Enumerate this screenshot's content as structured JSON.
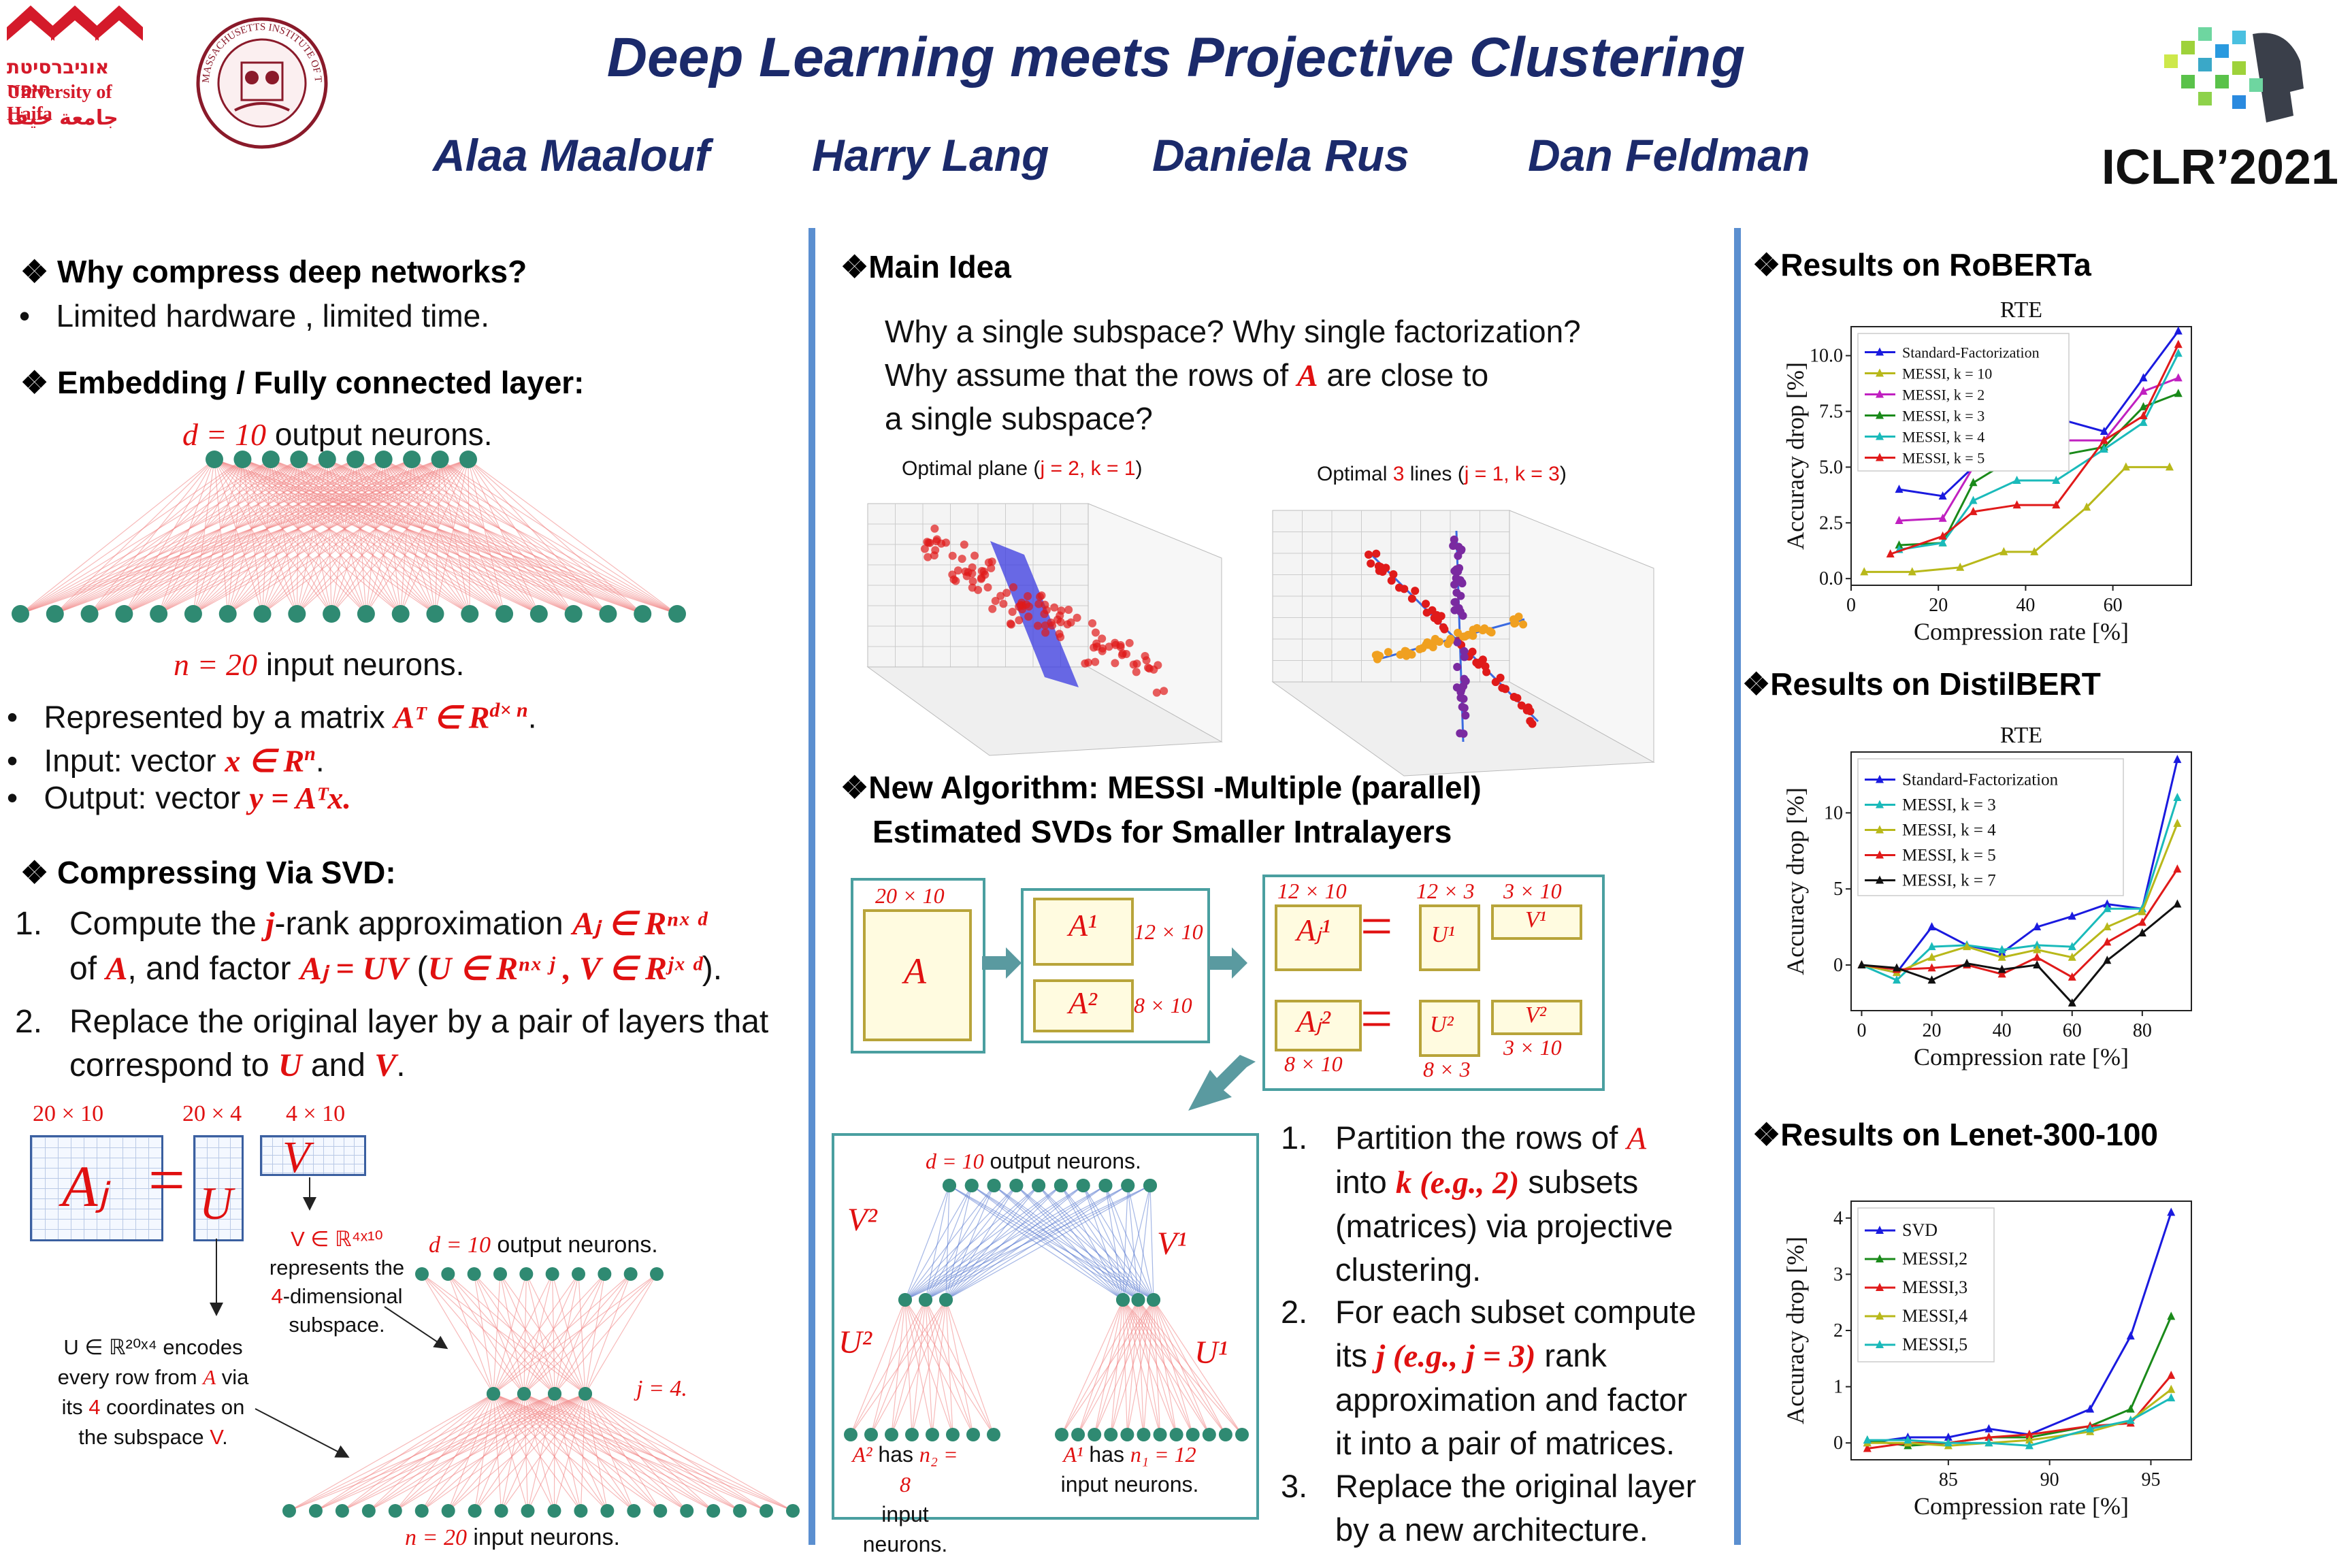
{
  "header": {
    "title": "Deep Learning meets Projective Clustering",
    "authors": [
      "Alaa Maalouf",
      "Harry Lang",
      "Daniela Rus",
      "Dan Feldman"
    ],
    "conference": "ICLR’2021",
    "haifa_logo_lines": [
      "אוניברסיטת חיפה",
      "University of Haifa",
      "جامعة حيفا"
    ],
    "mit_seal_text": "MASSACHUSETTS INSTITUTE OF TECHNOLOGY"
  },
  "left": {
    "why_heading": "❖ Why compress deep networks?",
    "why_bullet": "Limited hardware , limited time.",
    "emb_heading": "❖ Embedding / Fully connected layer:",
    "d_label": "d = 10",
    "d_suffix": " output neurons.",
    "n_label": "n = 20",
    "n_suffix": " input neurons.",
    "bullet1_pre": "Represented by a matrix ",
    "bullet1_math": "Aᵀ ∈ R",
    "bullet1_sup": "d× n",
    "bullet2_pre": "Input: vector ",
    "bullet2_math": "x ∈ R",
    "bullet2_sup": "n",
    "bullet3_pre": "Output: vector ",
    "bullet3_math": "y = Aᵀx.",
    "svd_heading": "❖ Compressing Via SVD:",
    "svd_step1_a": "Compute the ",
    "svd_step1_j": "j",
    "svd_step1_b": "-rank approximation ",
    "svd_step1_m1": "Aⱼ ∈ Rⁿˣ ᵈ",
    "svd_step1_c": "of ",
    "svd_step1_A": "A",
    "svd_step1_d": ", and factor ",
    "svd_step1_m2": "Aⱼ = UV",
    "svd_step1_e": " (",
    "svd_step1_m3": "U ∈ Rⁿˣ ʲ , V ∈ Rʲˣ ᵈ",
    "svd_step1_f": ").",
    "svd_step2_a": "Replace the original layer by a pair of layers that correspond to ",
    "svd_step2_U": "U",
    "svd_step2_and": " and ",
    "svd_step2_V": "V",
    "svd_step2_end": ".",
    "mat_Aj_dim": "20 × 10",
    "mat_U_dim": "20 × 4",
    "mat_V_dim": "4 × 10",
    "mat_Aj": "Aⱼ",
    "mat_eq": "=",
    "mat_U": "U",
    "mat_V": "V",
    "v_note_1": "V ∈ ℝ⁴ˣ¹⁰",
    "v_note_2": "represents the",
    "v_note_3a": "4",
    "v_note_3b": "-dimensional",
    "v_note_4": "subspace.",
    "u_note_1": "U ∈ ℝ²⁰ˣ⁴ encodes",
    "u_note_2a": "every row from ",
    "u_note_2b": "A",
    "u_note_2c": " via",
    "u_note_3a": "its ",
    "u_note_3b": "4",
    "u_note_3c": " coordinates on",
    "u_note_4a": "the subspace ",
    "u_note_4b": "V",
    "u_note_4c": ".",
    "net_d": "d = 10",
    "net_d_suffix": " output neurons.",
    "net_j": "j = 4.",
    "net_n": "n = 20",
    "net_n_suffix": " input neurons."
  },
  "middle": {
    "main_heading": "❖Main Idea",
    "main_q1": "Why a single subspace? Why single factorization?",
    "main_q2a": "Why assume that the rows of ",
    "main_q2b": "A",
    "main_q2c": " are close to",
    "main_q3": "a single subspace?",
    "plot1_title_a": "Optimal plane (",
    "plot1_title_b": "j = 2, k = 1",
    "plot1_title_c": ")",
    "plot2_title_a": "Optimal ",
    "plot2_title_b": "3",
    "plot2_title_c": " lines (",
    "plot2_title_d": "j = 1, k = 3",
    "plot2_title_e": ")",
    "alg_heading_1": "❖New Algorithm: MESSI -Multiple (parallel)",
    "alg_heading_2": "Estimated SVDs for Smaller Intralayers",
    "A_dim": "20 × 10",
    "A": "A",
    "A1": "A¹",
    "A1_dim": "12 × 10",
    "A2": "A²",
    "A2_dim": "8 × 10",
    "Aj1_dim": "12 × 10",
    "Aj1": "Aⱼ¹",
    "U1_dim": "12 × 3",
    "U1": "U¹",
    "V1_dim": "3 × 10",
    "V1": "V¹",
    "Aj2": "Aⱼ²",
    "Aj2_dim": "8 × 10",
    "U2": "U²",
    "U2_dim": "8 × 3",
    "V2": "V²",
    "V2_dim": "3 × 10",
    "eq": "=",
    "net_d": "d = 10",
    "net_d_suffix": " output neurons.",
    "net_V2": "V²",
    "net_V1": "V¹",
    "net_U2": "U²",
    "net_U1": "U¹",
    "net_A2_a": "A²",
    "net_A2_b": " has ",
    "net_A2_c": "n₂ = 8",
    "net_A1_a": "A¹",
    "net_A1_b": " has ",
    "net_A1_c": "n₁ = 12",
    "net_input": "input neurons.",
    "step1_a": "Partition the rows of ",
    "step1_A": "A",
    "step1_b": "into ",
    "step1_k": "k (e.g., 2)",
    "step1_c": " subsets",
    "step1_d": "(matrices) via projective",
    "step1_e": "clustering.",
    "step2_a": "For each subset compute",
    "step2_b": "its ",
    "step2_j": "j (e.g., j = 3)",
    "step2_c": " rank",
    "step2_d": "approximation and factor",
    "step2_e": "it into a pair of matrices.",
    "step3_a": "Replace the original layer",
    "step3_b": "by a new architecture."
  },
  "right": {
    "roberta_heading": "❖Results on RoBERTa",
    "distil_heading": "❖Results on DistilBERT",
    "lenet_heading": "❖Results on Lenet-300-100"
  },
  "chart_data": [
    {
      "type": "line",
      "title": "RTE",
      "xlabel": "Compression rate [%]",
      "ylabel": "Accuracy drop [%]",
      "xlim": [
        0,
        78
      ],
      "ylim": [
        -0.3,
        11.3
      ],
      "xticks": [
        0,
        20,
        40,
        60
      ],
      "yticks": [
        0.0,
        2.5,
        5.0,
        7.5,
        10.0
      ],
      "ytick_labels": [
        "0.0",
        "2.5",
        "5.0",
        "7.5",
        "10.0"
      ],
      "legend": "top-left",
      "series": [
        {
          "name": "Standard-Factorization",
          "color": "#1a1adf",
          "x": [
            11,
            21,
            28,
            38,
            47,
            58,
            67,
            75
          ],
          "y": [
            4.0,
            3.7,
            5.0,
            5.8,
            7.2,
            6.6,
            9.0,
            11.1
          ]
        },
        {
          "name": "MESSI, k = 10",
          "color": "#b8b81a",
          "x": [
            3,
            14,
            25,
            35,
            42,
            54,
            63,
            73
          ],
          "y": [
            0.3,
            0.3,
            0.5,
            1.2,
            1.2,
            3.2,
            5.0,
            5.0
          ]
        },
        {
          "name": "MESSI, k = 2",
          "color": "#c020c0",
          "x": [
            11,
            21,
            28,
            38,
            47,
            58,
            67,
            75
          ],
          "y": [
            2.6,
            2.7,
            5.0,
            6.0,
            6.2,
            6.2,
            8.4,
            9.0
          ]
        },
        {
          "name": "MESSI, k = 3",
          "color": "#1a8a1a",
          "x": [
            11,
            21,
            28,
            38,
            47,
            58,
            67,
            75
          ],
          "y": [
            1.5,
            1.6,
            4.3,
            5.5,
            5.5,
            5.9,
            7.7,
            8.3
          ]
        },
        {
          "name": "MESSI, k = 4",
          "color": "#1ababa",
          "x": [
            11,
            21,
            28,
            38,
            47,
            58,
            67,
            75
          ],
          "y": [
            1.3,
            1.6,
            3.5,
            4.4,
            4.4,
            5.8,
            7.0,
            10.1
          ]
        },
        {
          "name": "MESSI, k = 5",
          "color": "#e01a1a",
          "x": [
            9,
            21,
            28,
            38,
            47,
            58,
            67,
            75
          ],
          "y": [
            1.1,
            1.9,
            3.0,
            3.3,
            3.3,
            6.2,
            7.3,
            10.5
          ]
        }
      ]
    },
    {
      "type": "line",
      "title": "RTE",
      "xlabel": "Compression rate [%]",
      "ylabel": "Accuracy drop [%]",
      "xlim": [
        -3,
        94
      ],
      "ylim": [
        -3,
        14
      ],
      "xticks": [
        0,
        20,
        40,
        60,
        80
      ],
      "yticks": [
        0,
        5,
        10
      ],
      "ytick_labels": [
        "0",
        "5",
        "10"
      ],
      "legend": "top-left",
      "series": [
        {
          "name": "Standard-Factorization",
          "color": "#1a1adf",
          "x": [
            0,
            10,
            20,
            30,
            40,
            50,
            60,
            70,
            80,
            90
          ],
          "y": [
            0,
            -0.5,
            2.5,
            1.3,
            0.8,
            2.5,
            3.2,
            4.0,
            3.7,
            13.5
          ]
        },
        {
          "name": "MESSI, k = 3",
          "color": "#1ababa",
          "x": [
            0,
            10,
            20,
            30,
            40,
            50,
            60,
            70,
            80,
            90
          ],
          "y": [
            0,
            -1.0,
            1.2,
            1.3,
            1.0,
            1.3,
            1.2,
            3.7,
            3.7,
            11.0
          ]
        },
        {
          "name": "MESSI, k = 4",
          "color": "#b8b81a",
          "x": [
            0,
            10,
            20,
            30,
            40,
            50,
            60,
            70,
            80,
            90
          ],
          "y": [
            0,
            -0.5,
            0.5,
            1.2,
            0.5,
            1.0,
            0.5,
            2.5,
            3.5,
            9.3
          ]
        },
        {
          "name": "MESSI, k = 5",
          "color": "#e01a1a",
          "x": [
            0,
            10,
            20,
            30,
            40,
            50,
            60,
            70,
            80,
            90
          ],
          "y": [
            0,
            -0.3,
            -0.2,
            0.0,
            -0.6,
            0.5,
            -0.8,
            1.5,
            2.8,
            6.3
          ]
        },
        {
          "name": "MESSI, k = 7",
          "color": "#111111",
          "x": [
            0,
            10,
            20,
            30,
            40,
            50,
            60,
            70,
            80,
            90
          ],
          "y": [
            0,
            -0.2,
            -1.0,
            0.1,
            -0.3,
            0.0,
            -2.5,
            0.3,
            2.1,
            4.0
          ]
        }
      ]
    },
    {
      "type": "line",
      "title": "",
      "xlabel": "Compression rate [%]",
      "ylabel": "Accuracy drop [%]",
      "xlim": [
        80.2,
        97
      ],
      "ylim": [
        -0.3,
        4.3
      ],
      "xticks": [
        85,
        90,
        95
      ],
      "yticks": [
        0,
        1,
        2,
        3,
        4
      ],
      "ytick_labels": [
        "0",
        "1",
        "2",
        "3",
        "4"
      ],
      "legend": "top-left",
      "series": [
        {
          "name": "SVD",
          "color": "#1a1adf",
          "x": [
            81,
            83,
            85,
            87,
            89,
            92,
            94,
            96
          ],
          "y": [
            0.0,
            0.1,
            0.1,
            0.25,
            0.15,
            0.6,
            1.9,
            4.1
          ]
        },
        {
          "name": "MESSI,2",
          "color": "#1a8a1a",
          "x": [
            81,
            83,
            85,
            87,
            89,
            92,
            94,
            96
          ],
          "y": [
            0.05,
            -0.05,
            0.0,
            0.1,
            0.1,
            0.3,
            0.6,
            2.25
          ]
        },
        {
          "name": "MESSI,3",
          "color": "#e01a1a",
          "x": [
            81,
            83,
            85,
            87,
            89,
            92,
            94,
            96
          ],
          "y": [
            -0.1,
            0.0,
            0.0,
            0.1,
            0.15,
            0.3,
            0.35,
            1.2
          ]
        },
        {
          "name": "MESSI,4",
          "color": "#b8b81a",
          "x": [
            81,
            83,
            85,
            87,
            89,
            92,
            94,
            96
          ],
          "y": [
            0.0,
            0.0,
            -0.05,
            0.0,
            0.05,
            0.2,
            0.4,
            0.95
          ]
        },
        {
          "name": "MESSI,5",
          "color": "#1ababa",
          "x": [
            81,
            83,
            85,
            87,
            89,
            92,
            94,
            96
          ],
          "y": [
            0.05,
            0.05,
            0.0,
            0.0,
            -0.05,
            0.25,
            0.4,
            0.8
          ]
        }
      ]
    }
  ]
}
